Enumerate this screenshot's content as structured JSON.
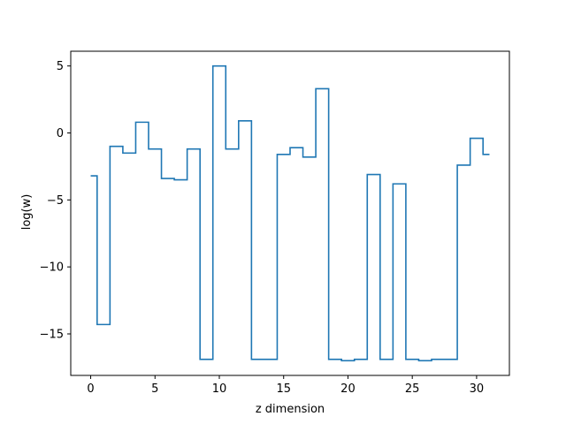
{
  "chart_data": {
    "type": "line",
    "drawstyle": "steps-mid",
    "xlabel": "z dimension",
    "ylabel": "log(w)",
    "xlim": [
      -1.55,
      32.55
    ],
    "ylim": [
      -18.1,
      6.1
    ],
    "xticks": [
      0,
      5,
      10,
      15,
      20,
      25,
      30
    ],
    "yticks": [
      5,
      0,
      -5,
      -10,
      -15
    ],
    "ytick_labels": [
      "5",
      "0",
      "−5",
      "−10",
      "−15"
    ],
    "grid": false,
    "series": [
      {
        "color": "#1f77b4",
        "x": [
          0,
          1,
          2,
          3,
          4,
          5,
          6,
          7,
          8,
          9,
          10,
          11,
          12,
          13,
          14,
          15,
          16,
          17,
          18,
          19,
          20,
          21,
          22,
          23,
          24,
          25,
          26,
          27,
          28,
          29,
          30,
          31
        ],
        "values": [
          -3.2,
          -14.3,
          -1.0,
          -1.5,
          0.8,
          -1.2,
          -3.4,
          -3.5,
          -1.2,
          -16.9,
          5.0,
          -1.2,
          0.9,
          -16.9,
          -16.9,
          -1.6,
          -1.1,
          -1.8,
          3.3,
          -16.9,
          -17.0,
          -16.9,
          -3.1,
          -16.9,
          -3.8,
          -16.9,
          -17.0,
          -16.9,
          -16.9,
          -2.4,
          -0.4,
          -1.6
        ]
      }
    ]
  }
}
